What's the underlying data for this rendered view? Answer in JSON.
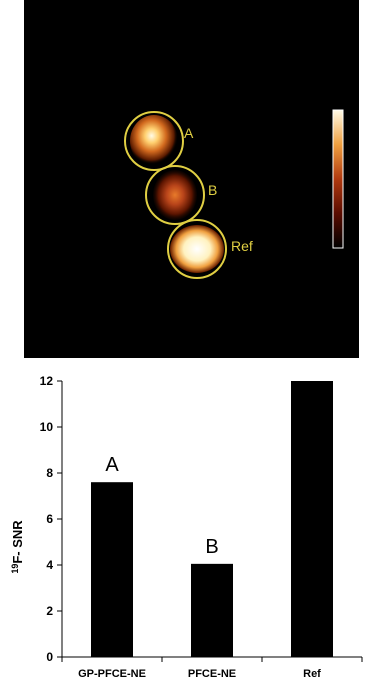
{
  "image": {
    "background": "#000000",
    "circle_color": "#e0cf43",
    "label_color": "#e0cf43",
    "labels": [
      "A",
      "B",
      "Ref"
    ]
  },
  "chart_data": {
    "type": "bar",
    "categories": [
      "GP-PFCE-NE",
      "PFCE-NE",
      "Ref"
    ],
    "values": [
      7.6,
      4.05,
      12
    ],
    "bar_labels": [
      "A",
      "B",
      ""
    ],
    "ylabel_sup": "19",
    "ylabel_main": "F- SNR",
    "xlabel": "",
    "ylim": [
      0,
      12
    ],
    "yticks": [
      0,
      2,
      4,
      6,
      8,
      10,
      12
    ],
    "bar_color": "#000000",
    "grid": false
  }
}
